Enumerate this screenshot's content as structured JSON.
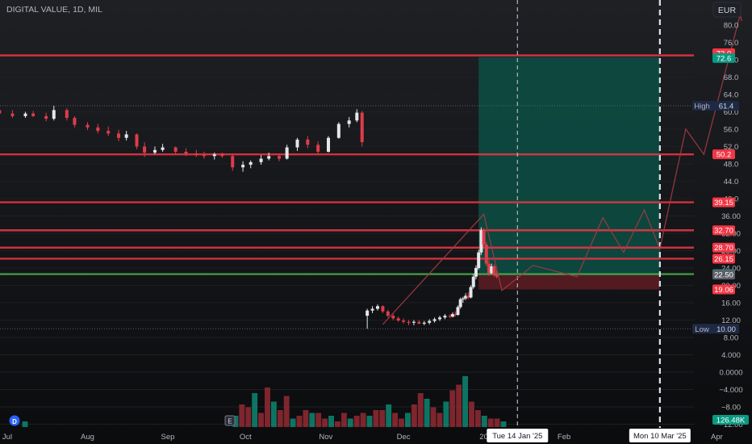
{
  "header": {
    "title": "DIGITAL VALUE, 1D, MIL",
    "currency": "EUR"
  },
  "chart_data": {
    "type": "candlestick",
    "y_axis_ticks": [
      80.0,
      76.0,
      72.0,
      68.0,
      64.0,
      60.0,
      56.0,
      52.0,
      48.0,
      44.0,
      40.0,
      36.0,
      32.0,
      28.0,
      24.0,
      20.0,
      16.0,
      12.0,
      8.0,
      4.0,
      0.0,
      -4.0,
      -8.0,
      -12.0
    ],
    "y_axis_labels": [
      "80.0",
      "76.0",
      "72.0",
      "68.0",
      "64.0",
      "60.0",
      "56.0",
      "52.0",
      "48.0",
      "44.0",
      "40.0",
      "36.00",
      "32.00",
      "28.00",
      "24.00",
      "20.00",
      "16.00",
      "12.00",
      "8.00",
      "4.000",
      "0.0000",
      "−4.000",
      "−8.00",
      "−12.00"
    ],
    "x_axis_labels": [
      {
        "label": "Jul",
        "date": "2024-07-01"
      },
      {
        "label": "Aug",
        "date": "2024-08-01"
      },
      {
        "label": "Sep",
        "date": "2024-09-01"
      },
      {
        "label": "Oct",
        "date": "2024-10-01"
      },
      {
        "label": "Nov",
        "date": "2024-11-01"
      },
      {
        "label": "Dec",
        "date": "2024-12-01"
      },
      {
        "label": "20",
        "date": "2025-01-01"
      },
      {
        "label": "Feb",
        "date": "2025-02-01"
      },
      {
        "label": "Apr",
        "date": "2025-04-01"
      }
    ],
    "date_markers": [
      {
        "label": "Tue 14 Jan '25",
        "date": "2025-01-14"
      },
      {
        "label": "Mon 10 Mar '25",
        "date": "2025-03-10"
      }
    ],
    "horizontal_levels": [
      {
        "value": 73.0,
        "label": "73.0",
        "color": "#f23645"
      },
      {
        "value": 50.2,
        "label": "50.2",
        "color": "#f23645"
      },
      {
        "value": 39.15,
        "label": "39.15",
        "color": "#f23645"
      },
      {
        "value": 32.7,
        "label": "32.70",
        "color": "#f23645"
      },
      {
        "value": 28.7,
        "label": "28.70",
        "color": "#f23645"
      },
      {
        "value": 26.15,
        "label": "26.15",
        "color": "#f23645"
      },
      {
        "value": 22.6,
        "label": "22.60",
        "color": "#4caf50"
      }
    ],
    "price_tags": [
      {
        "value": 72.6,
        "label": "72.6",
        "color": "#089981"
      },
      {
        "value": 22.5,
        "label": "22.50",
        "color": "#5d606b"
      },
      {
        "value": 19.06,
        "label": "19.06",
        "color": "#f23645"
      }
    ],
    "high": {
      "label": "High",
      "value": 61.4,
      "value_label": "61.4"
    },
    "low": {
      "label": "Low",
      "value": 10.0,
      "value_label": "10.00"
    },
    "volume_label": "126.48K",
    "position_box": {
      "start": "2024-12-30",
      "end": "2025-03-10",
      "entry": 22.5,
      "target": 72.6,
      "stop": 19.06
    },
    "candles": [
      {
        "date": "2024-06-25",
        "o": 59.8,
        "h": 61.0,
        "l": 59.0,
        "c": 60.4
      },
      {
        "date": "2024-06-28",
        "o": 60.4,
        "h": 61.2,
        "l": 59.2,
        "c": 59.6
      },
      {
        "date": "2024-07-03",
        "o": 59.6,
        "h": 60.4,
        "l": 58.6,
        "c": 59.0
      },
      {
        "date": "2024-07-08",
        "o": 59.0,
        "h": 60.0,
        "l": 58.6,
        "c": 59.6
      },
      {
        "date": "2024-07-11",
        "o": 59.6,
        "h": 60.2,
        "l": 58.8,
        "c": 59.0
      },
      {
        "date": "2024-07-16",
        "o": 59.0,
        "h": 59.8,
        "l": 57.8,
        "c": 58.4
      },
      {
        "date": "2024-07-19",
        "o": 58.4,
        "h": 61.4,
        "l": 58.0,
        "c": 60.4
      },
      {
        "date": "2024-07-24",
        "o": 60.4,
        "h": 60.8,
        "l": 58.0,
        "c": 58.6
      },
      {
        "date": "2024-07-27",
        "o": 58.6,
        "h": 59.0,
        "l": 56.4,
        "c": 57.0
      },
      {
        "date": "2024-08-01",
        "o": 57.0,
        "h": 57.6,
        "l": 55.8,
        "c": 56.4
      },
      {
        "date": "2024-08-05",
        "o": 56.4,
        "h": 57.2,
        "l": 55.0,
        "c": 55.6
      },
      {
        "date": "2024-08-09",
        "o": 55.6,
        "h": 56.6,
        "l": 54.4,
        "c": 55.0
      },
      {
        "date": "2024-08-13",
        "o": 55.0,
        "h": 55.8,
        "l": 53.2,
        "c": 54.0
      },
      {
        "date": "2024-08-16",
        "o": 54.0,
        "h": 55.6,
        "l": 53.4,
        "c": 54.8
      },
      {
        "date": "2024-08-20",
        "o": 54.8,
        "h": 55.0,
        "l": 51.4,
        "c": 52.0
      },
      {
        "date": "2024-08-23",
        "o": 52.0,
        "h": 53.0,
        "l": 49.6,
        "c": 50.6
      },
      {
        "date": "2024-08-27",
        "o": 50.6,
        "h": 52.0,
        "l": 50.2,
        "c": 51.2
      },
      {
        "date": "2024-08-30",
        "o": 51.2,
        "h": 52.6,
        "l": 50.8,
        "c": 51.8
      },
      {
        "date": "2024-09-04",
        "o": 51.8,
        "h": 52.0,
        "l": 50.4,
        "c": 50.8
      },
      {
        "date": "2024-09-08",
        "o": 50.8,
        "h": 51.6,
        "l": 49.8,
        "c": 50.4
      },
      {
        "date": "2024-09-12",
        "o": 50.4,
        "h": 51.2,
        "l": 49.6,
        "c": 50.0
      },
      {
        "date": "2024-09-15",
        "o": 50.0,
        "h": 50.8,
        "l": 49.2,
        "c": 49.8
      },
      {
        "date": "2024-09-19",
        "o": 49.8,
        "h": 50.6,
        "l": 49.0,
        "c": 50.2
      },
      {
        "date": "2024-09-22",
        "o": 50.2,
        "h": 50.6,
        "l": 49.4,
        "c": 49.8
      },
      {
        "date": "2024-09-26",
        "o": 49.8,
        "h": 50.2,
        "l": 46.4,
        "c": 47.2
      },
      {
        "date": "2024-09-30",
        "o": 47.2,
        "h": 48.6,
        "l": 46.2,
        "c": 47.8
      },
      {
        "date": "2024-10-03",
        "o": 47.8,
        "h": 48.8,
        "l": 47.0,
        "c": 48.4
      },
      {
        "date": "2024-10-07",
        "o": 48.4,
        "h": 50.0,
        "l": 47.8,
        "c": 49.2
      },
      {
        "date": "2024-10-10",
        "o": 49.2,
        "h": 50.6,
        "l": 48.8,
        "c": 49.8
      },
      {
        "date": "2024-10-14",
        "o": 49.8,
        "h": 50.4,
        "l": 48.6,
        "c": 49.2
      },
      {
        "date": "2024-10-17",
        "o": 49.2,
        "h": 52.4,
        "l": 49.0,
        "c": 51.8
      },
      {
        "date": "2024-10-21",
        "o": 51.8,
        "h": 54.0,
        "l": 51.0,
        "c": 53.6
      },
      {
        "date": "2024-10-25",
        "o": 53.6,
        "h": 54.4,
        "l": 51.6,
        "c": 52.4
      },
      {
        "date": "2024-10-29",
        "o": 52.4,
        "h": 53.2,
        "l": 50.4,
        "c": 50.8
      },
      {
        "date": "2024-11-02",
        "o": 50.8,
        "h": 54.4,
        "l": 50.6,
        "c": 54.0
      },
      {
        "date": "2024-11-06",
        "o": 54.0,
        "h": 57.6,
        "l": 53.8,
        "c": 57.2
      },
      {
        "date": "2024-11-10",
        "o": 57.2,
        "h": 58.8,
        "l": 56.4,
        "c": 58.0
      },
      {
        "date": "2024-11-13",
        "o": 58.0,
        "h": 60.6,
        "l": 57.6,
        "c": 59.8
      },
      {
        "date": "2024-11-15",
        "o": 59.8,
        "h": 60.2,
        "l": 52.0,
        "c": 53.0
      }
    ],
    "candles_recent": [
      {
        "date": "2024-11-17",
        "o": 13.0,
        "h": 14.6,
        "l": 10.0,
        "c": 14.2
      },
      {
        "date": "2024-11-19",
        "o": 14.2,
        "h": 15.2,
        "l": 13.6,
        "c": 14.6
      },
      {
        "date": "2024-11-21",
        "o": 14.6,
        "h": 15.6,
        "l": 14.2,
        "c": 15.2
      },
      {
        "date": "2024-11-23",
        "o": 15.2,
        "h": 15.4,
        "l": 13.6,
        "c": 14.0
      },
      {
        "date": "2024-11-25",
        "o": 14.0,
        "h": 14.4,
        "l": 12.6,
        "c": 13.0
      },
      {
        "date": "2024-11-27",
        "o": 13.0,
        "h": 13.4,
        "l": 12.0,
        "c": 12.4
      },
      {
        "date": "2024-11-29",
        "o": 12.4,
        "h": 12.8,
        "l": 11.6,
        "c": 11.9
      },
      {
        "date": "2024-12-01",
        "o": 11.9,
        "h": 12.4,
        "l": 11.2,
        "c": 11.6
      },
      {
        "date": "2024-12-03",
        "o": 11.6,
        "h": 12.0,
        "l": 10.8,
        "c": 11.4
      },
      {
        "date": "2024-12-05",
        "o": 11.4,
        "h": 12.0,
        "l": 10.8,
        "c": 11.6
      },
      {
        "date": "2024-12-07",
        "o": 11.6,
        "h": 12.0,
        "l": 11.0,
        "c": 11.2
      },
      {
        "date": "2024-12-09",
        "o": 11.2,
        "h": 11.8,
        "l": 10.8,
        "c": 11.4
      },
      {
        "date": "2024-12-11",
        "o": 11.4,
        "h": 12.2,
        "l": 11.0,
        "c": 11.8
      },
      {
        "date": "2024-12-13",
        "o": 11.8,
        "h": 12.6,
        "l": 11.4,
        "c": 12.2
      },
      {
        "date": "2024-12-15",
        "o": 12.2,
        "h": 13.0,
        "l": 11.8,
        "c": 12.6
      },
      {
        "date": "2024-12-17",
        "o": 12.6,
        "h": 13.4,
        "l": 12.2,
        "c": 13.0
      },
      {
        "date": "2024-12-19",
        "o": 13.0,
        "h": 13.4,
        "l": 12.4,
        "c": 12.8
      },
      {
        "date": "2024-12-20",
        "o": 12.8,
        "h": 13.8,
        "l": 12.6,
        "c": 13.4
      },
      {
        "date": "2024-12-21",
        "o": 13.4,
        "h": 14.0,
        "l": 12.8,
        "c": 13.2
      },
      {
        "date": "2024-12-22",
        "o": 13.2,
        "h": 15.4,
        "l": 13.0,
        "c": 15.0
      },
      {
        "date": "2024-12-23",
        "o": 15.0,
        "h": 17.2,
        "l": 14.6,
        "c": 16.8
      },
      {
        "date": "2024-12-24",
        "o": 16.8,
        "h": 17.4,
        "l": 16.0,
        "c": 17.0
      },
      {
        "date": "2024-12-25",
        "o": 17.0,
        "h": 18.2,
        "l": 16.6,
        "c": 17.6
      },
      {
        "date": "2024-12-26",
        "o": 17.6,
        "h": 18.4,
        "l": 16.8,
        "c": 17.2
      },
      {
        "date": "2024-12-27",
        "o": 17.2,
        "h": 20.0,
        "l": 17.0,
        "c": 19.6
      },
      {
        "date": "2024-12-28",
        "o": 19.6,
        "h": 22.6,
        "l": 19.2,
        "c": 22.0
      },
      {
        "date": "2024-12-29",
        "o": 22.0,
        "h": 24.6,
        "l": 21.4,
        "c": 24.0
      },
      {
        "date": "2024-12-30",
        "o": 24.0,
        "h": 28.2,
        "l": 23.6,
        "c": 27.6
      },
      {
        "date": "2024-12-31",
        "o": 27.6,
        "h": 33.4,
        "l": 27.0,
        "c": 32.8
      },
      {
        "date": "2025-01-01",
        "o": 32.8,
        "h": 33.2,
        "l": 29.0,
        "c": 29.4
      },
      {
        "date": "2025-01-02",
        "o": 29.4,
        "h": 30.0,
        "l": 24.4,
        "c": 25.0
      },
      {
        "date": "2025-01-03",
        "o": 25.0,
        "h": 25.8,
        "l": 22.2,
        "c": 22.8
      },
      {
        "date": "2025-01-04",
        "o": 22.8,
        "h": 25.0,
        "l": 22.6,
        "c": 24.4
      },
      {
        "date": "2025-01-05",
        "o": 24.4,
        "h": 24.8,
        "l": 22.0,
        "c": 22.4
      },
      {
        "date": "2025-01-06",
        "o": 22.4,
        "h": 23.4,
        "l": 21.6,
        "c": 22.0
      }
    ],
    "volume": [
      3,
      0,
      0,
      0,
      0,
      0,
      2,
      0,
      0,
      0,
      0,
      0,
      0,
      0,
      0,
      0,
      0,
      0,
      0,
      0,
      0,
      0,
      0,
      0,
      0,
      0,
      0,
      0,
      0,
      0,
      0,
      0,
      0,
      0,
      0,
      0,
      0,
      0,
      0,
      4,
      8,
      7,
      12,
      5,
      14,
      9,
      6,
      11,
      3,
      4,
      6,
      5,
      5,
      3,
      4,
      2,
      5,
      3,
      4,
      5,
      4,
      6,
      6,
      8,
      5,
      3,
      5,
      8,
      12,
      10,
      7,
      5,
      9,
      13,
      15,
      18,
      9,
      6,
      4,
      3,
      3,
      2
    ],
    "projection_path": [
      {
        "date": "2024-11-23",
        "v": 11.0
      },
      {
        "date": "2025-01-01",
        "v": 36.4
      },
      {
        "date": "2025-01-08",
        "v": 18.8
      },
      {
        "date": "2025-01-20",
        "v": 24.6
      },
      {
        "date": "2025-02-06",
        "v": 22.0
      },
      {
        "date": "2025-02-16",
        "v": 35.6
      },
      {
        "date": "2025-02-24",
        "v": 27.6
      },
      {
        "date": "2025-03-04",
        "v": 37.4
      },
      {
        "date": "2025-03-10",
        "v": 28.4
      },
      {
        "date": "2025-03-20",
        "v": 56.0
      },
      {
        "date": "2025-03-27",
        "v": 50.2
      },
      {
        "date": "2025-04-10",
        "v": 82.4
      }
    ]
  }
}
